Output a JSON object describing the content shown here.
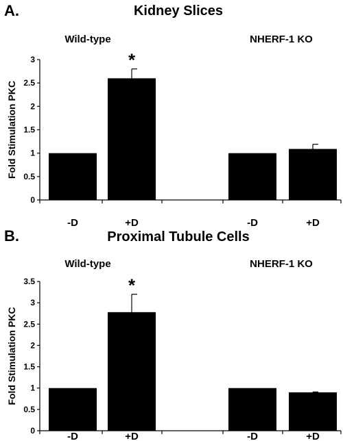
{
  "chart_data": [
    {
      "type": "bar",
      "panel": "A.",
      "title": "Kidney Slices",
      "groups": [
        "Wild-type",
        "NHERF-1 KO"
      ],
      "categories": [
        "-D",
        "+D",
        "-D",
        "+D"
      ],
      "values": [
        1,
        2.6,
        1,
        1.09
      ],
      "errors": [
        0,
        0.2,
        0,
        0.1
      ],
      "significance": [
        "",
        "*",
        "",
        ""
      ],
      "ylabel": "Fold Stimulation PKC",
      "ylim": [
        0,
        3
      ],
      "yticks": [
        0,
        0.5,
        1,
        1.5,
        2,
        2.5,
        3
      ],
      "grid": false
    },
    {
      "type": "bar",
      "panel": "B.",
      "title": "Proximal Tubule Cells",
      "groups": [
        "Wild-type",
        "NHERF-1 KO"
      ],
      "categories": [
        "-D",
        "+D",
        "-D",
        "+D"
      ],
      "values": [
        1,
        2.78,
        1,
        0.9
      ],
      "errors": [
        0,
        0.42,
        0,
        0.01
      ],
      "significance": [
        "",
        "*",
        "",
        ""
      ],
      "ylabel": "Fold Stimulation PKC",
      "ylim": [
        0,
        3.5
      ],
      "yticks": [
        0,
        0.5,
        1,
        1.5,
        2,
        2.5,
        3,
        3.5
      ],
      "grid": false
    }
  ]
}
